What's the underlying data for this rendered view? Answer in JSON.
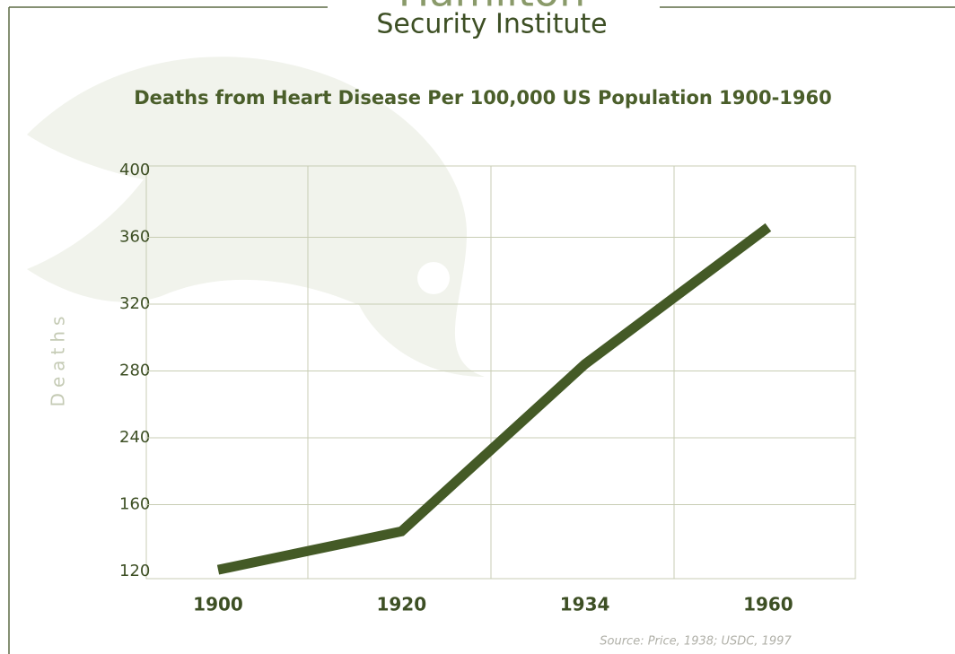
{
  "header": {
    "logo_top": "Hamilton",
    "logo_bottom": "Security Institute"
  },
  "chart_data": {
    "type": "line",
    "title": "Deaths from Heart Disease Per 100,000 US Population 1900-1960",
    "y_label": "Deaths",
    "source": "Source: Price, 1938; USDC, 1997",
    "categories": [
      "1900",
      "1920",
      "1934",
      "1960"
    ],
    "series": [
      {
        "name": "Deaths",
        "color": "#445a26",
        "values": [
          121,
          144,
          284,
          366
        ]
      }
    ],
    "ylim": [
      120,
      400
    ],
    "yticks": [
      120,
      160,
      240,
      280,
      320,
      360,
      400
    ],
    "grid": true
  }
}
